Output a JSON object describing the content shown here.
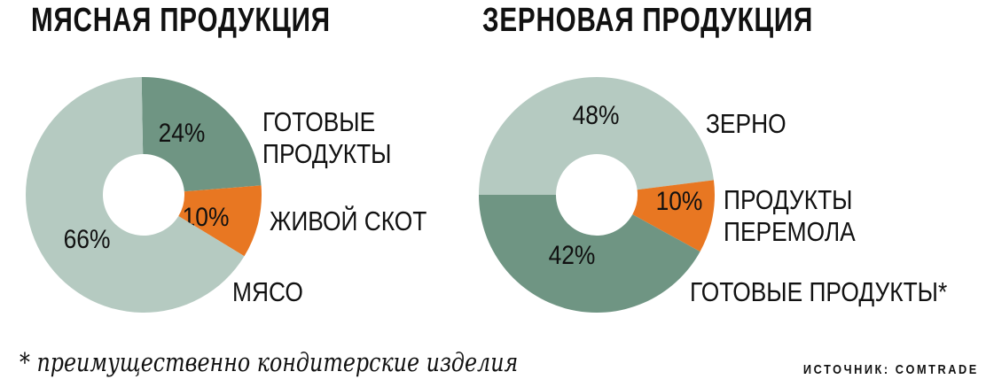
{
  "chart_data": [
    {
      "type": "pie",
      "donut": true,
      "title": "МЯСНАЯ ПРОДУКЦИЯ",
      "categories": [
        "ГОТОВЫЕ ПРОДУКТЫ",
        "ЖИВОЙ СКОТ",
        "МЯСО"
      ],
      "values": [
        24,
        10,
        66
      ],
      "labels": [
        "24%",
        "10%",
        "66%"
      ],
      "colors": [
        "#6f9583",
        "#e87722",
        "#b5cac1"
      ]
    },
    {
      "type": "pie",
      "donut": true,
      "title": "ЗЕРНОВАЯ ПРОДУКЦИЯ",
      "categories": [
        "ЗЕРНО",
        "ПРОДУКТЫ ПЕРЕМОЛА",
        "ГОТОВЫЕ ПРОДУКТЫ*"
      ],
      "values": [
        48,
        10,
        42
      ],
      "labels": [
        "48%",
        "10%",
        "42%"
      ],
      "colors": [
        "#b5cac1",
        "#e87722",
        "#6f9583"
      ]
    }
  ],
  "footnote": "* преимущественно кондитерские изделия",
  "source": "ИСТОЧНИК: COMTRADE"
}
